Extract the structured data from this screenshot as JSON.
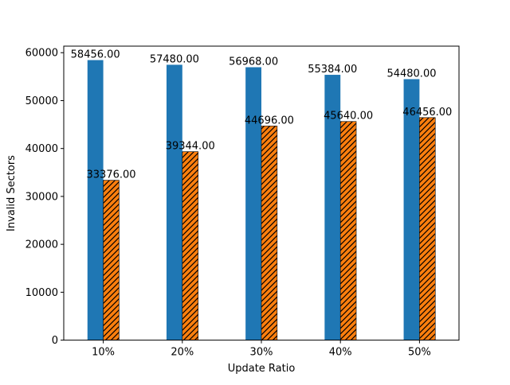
{
  "chart_data": {
    "type": "bar",
    "title": "",
    "xlabel": "Update Ratio",
    "ylabel": "Invalid Sectors",
    "categories": [
      "10%",
      "20%",
      "30%",
      "40%",
      "50%"
    ],
    "series": [
      {
        "values": [
          58456,
          57480,
          56968,
          55384,
          54480
        ],
        "labels": [
          "58456.00",
          "57480.00",
          "56968.00",
          "55384.00",
          "54480.00"
        ],
        "color": "#1f77b4",
        "hatch": "none"
      },
      {
        "values": [
          33376,
          39344,
          44696,
          45640,
          46456
        ],
        "labels": [
          "33376.00",
          "39344.00",
          "44696.00",
          "45640.00",
          "46456.00"
        ],
        "color": "#ff7f0e",
        "hatch": "diagonal"
      }
    ],
    "ylim": [
      0,
      60000
    ],
    "yticks": [
      0,
      10000,
      20000,
      30000,
      40000,
      50000,
      60000
    ],
    "ytick_labels": [
      "0",
      "10000",
      "20000",
      "30000",
      "40000",
      "50000",
      "60000"
    ],
    "grid": false,
    "legend": "none"
  }
}
